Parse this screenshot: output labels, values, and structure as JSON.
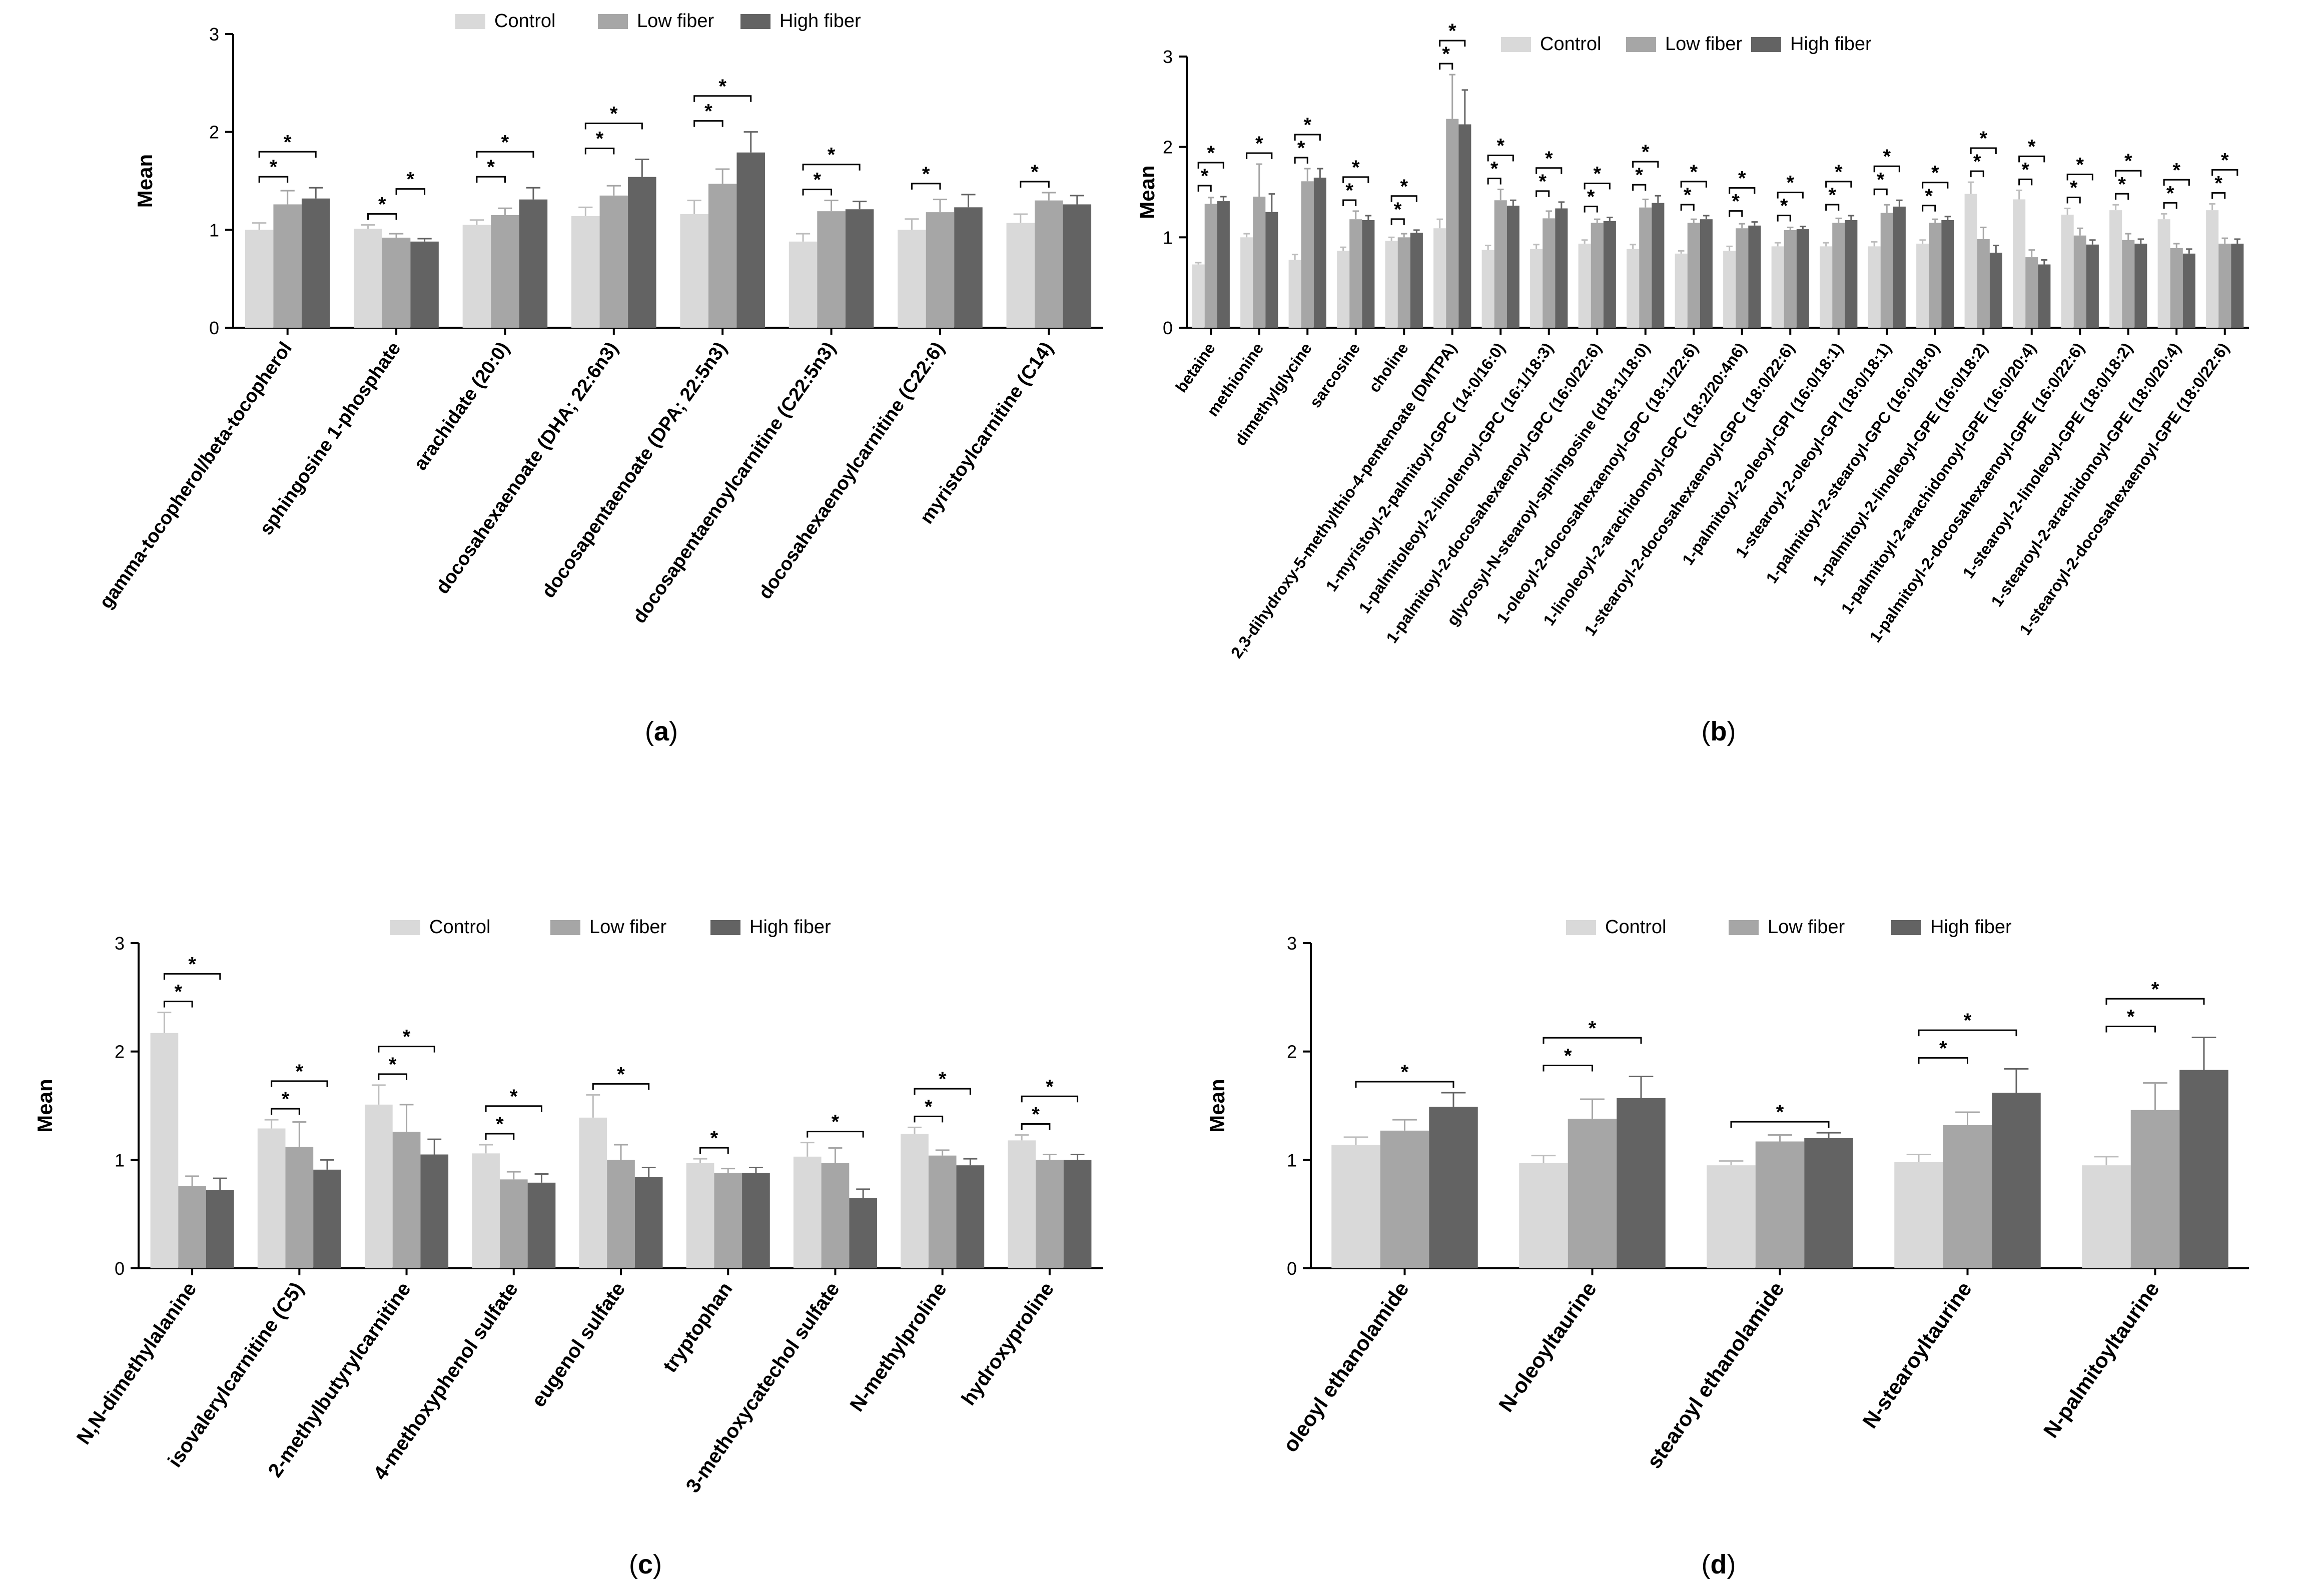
{
  "colors": {
    "control": "#d9d9d9",
    "low_fiber": "#a6a6a6",
    "high_fiber": "#636363",
    "axis": "#000000"
  },
  "legend": [
    "Control",
    "Low fiber",
    "High fiber"
  ],
  "chart_data": [
    {
      "type": "bar",
      "panel_label": "(a)",
      "ylabel": "Mean",
      "ylim": [
        0,
        3
      ],
      "yticks": [
        0,
        1,
        2,
        3
      ],
      "categories": [
        "gamma-tocopherol/beta-tocopherol",
        "sphingosine 1-phosphate",
        "arachidate (20:0)",
        "docosahexaenoate (DHA; 22:6n3)",
        "docosapentaenoate (DPA; 22:5n3)",
        "docosapentaenoylcarnitine (C22:5n3)",
        "docosahexaenoylcarnitine (C22:6)",
        "myristoylcarnitine (C14)"
      ],
      "series": [
        {
          "name": "Control",
          "values": [
            1.0,
            1.01,
            1.05,
            1.14,
            1.16,
            0.88,
            1.0,
            1.07
          ],
          "errors": [
            0.07,
            0.04,
            0.05,
            0.09,
            0.14,
            0.08,
            0.11,
            0.09
          ]
        },
        {
          "name": "Low fiber",
          "values": [
            1.26,
            0.92,
            1.15,
            1.35,
            1.47,
            1.19,
            1.18,
            1.3
          ],
          "errors": [
            0.14,
            0.04,
            0.07,
            0.1,
            0.15,
            0.11,
            0.13,
            0.08
          ]
        },
        {
          "name": "High fiber",
          "values": [
            1.32,
            0.88,
            1.31,
            1.54,
            1.79,
            1.21,
            1.23,
            1.26
          ],
          "errors": [
            0.11,
            0.03,
            0.12,
            0.18,
            0.21,
            0.08,
            0.13,
            0.09
          ]
        }
      ],
      "significance": [
        {
          "category": 0,
          "from": 0,
          "to": 1,
          "label": "*"
        },
        {
          "category": 0,
          "from": 0,
          "to": 2,
          "label": "*"
        },
        {
          "category": 1,
          "from": 0,
          "to": 1,
          "label": "*"
        },
        {
          "category": 1,
          "from": 1,
          "to": 2,
          "label": "*"
        },
        {
          "category": 2,
          "from": 0,
          "to": 1,
          "label": "*"
        },
        {
          "category": 2,
          "from": 0,
          "to": 2,
          "label": "*"
        },
        {
          "category": 3,
          "from": 0,
          "to": 1,
          "label": "*"
        },
        {
          "category": 3,
          "from": 0,
          "to": 2,
          "label": "*"
        },
        {
          "category": 4,
          "from": 0,
          "to": 1,
          "label": "*"
        },
        {
          "category": 4,
          "from": 0,
          "to": 2,
          "label": "*"
        },
        {
          "category": 5,
          "from": 0,
          "to": 1,
          "label": "*"
        },
        {
          "category": 5,
          "from": 0,
          "to": 2,
          "label": "*"
        },
        {
          "category": 6,
          "from": 0,
          "to": 1,
          "label": "*"
        },
        {
          "category": 7,
          "from": 0,
          "to": 1,
          "label": "*"
        }
      ]
    },
    {
      "type": "bar",
      "panel_label": "(b)",
      "ylabel": "Mean",
      "ylim": [
        0,
        3
      ],
      "yticks": [
        0,
        1,
        2,
        3
      ],
      "categories": [
        "betaine",
        "methionine",
        "dimethylglycine",
        "sarcosine",
        "choline",
        "2,3-dihydroxy-5-methylthio-4-pentenoate (DMTPA)",
        "1-myristoyl-2-palmitoyl-GPC (14:0/16:0)",
        "1-palmitoleoyl-2-linolenoyl-GPC (16:1/18:3)",
        "1-palmitoyl-2-docosahexaenoyl-GPC (16:0/22:6)",
        "glycosyl-N-stearoyl-sphingosine (d18:1/18:0)",
        "1-oleoyl-2-docosahexaenoyl-GPC (18:1/22:6)",
        "1-linoleoyl-2-arachidonoyl-GPC (18:2/20:4n6)",
        "1-stearoyl-2-docosahexaenoyl-GPC (18:0/22:6)",
        "1-palmitoyl-2-oleoyl-GPI (16:0/18:1)",
        "1-stearoyl-2-oleoyl-GPI (18:0/18:1)",
        "1-palmitoyl-2-stearoyl-GPC (16:0/18:0)",
        "1-palmitoyl-2-linoleoyl-GPE (16:0/18:2)",
        "1-palmitoyl-2-arachidonoyl-GPE (16:0/20:4)",
        "1-palmitoyl-2-docosahexaenoyl-GPE (16:0/22:6)",
        "1-stearoyl-2-linoleoyl-GPE (18:0/18:2)",
        "1-stearoyl-2-arachidonoyl-GPE (18:0/20:4)",
        "1-stearoyl-2-docosahexaenoyl-GPE (18:0/22:6)"
      ],
      "series": [
        {
          "name": "Control",
          "values": [
            0.7,
            1.0,
            0.75,
            0.85,
            0.96,
            1.1,
            0.86,
            0.87,
            0.93,
            0.87,
            0.82,
            0.85,
            0.9,
            0.9,
            0.9,
            0.93,
            1.48,
            1.42,
            1.25,
            1.3,
            1.2,
            1.3
          ],
          "errors": [
            0.02,
            0.04,
            0.06,
            0.04,
            0.04,
            0.1,
            0.05,
            0.05,
            0.04,
            0.05,
            0.03,
            0.05,
            0.04,
            0.04,
            0.05,
            0.04,
            0.13,
            0.1,
            0.07,
            0.06,
            0.06,
            0.07
          ]
        },
        {
          "name": "Low fiber",
          "values": [
            1.37,
            1.45,
            1.62,
            1.2,
            1.0,
            2.31,
            1.41,
            1.21,
            1.16,
            1.33,
            1.16,
            1.1,
            1.08,
            1.16,
            1.27,
            1.16,
            0.98,
            0.78,
            1.02,
            0.97,
            0.88,
            0.93
          ],
          "errors": [
            0.07,
            0.36,
            0.14,
            0.09,
            0.04,
            0.49,
            0.12,
            0.08,
            0.04,
            0.09,
            0.04,
            0.05,
            0.03,
            0.05,
            0.09,
            0.04,
            0.13,
            0.08,
            0.08,
            0.07,
            0.05,
            0.06
          ]
        },
        {
          "name": "High fiber",
          "values": [
            1.4,
            1.28,
            1.66,
            1.19,
            1.05,
            2.25,
            1.35,
            1.32,
            1.18,
            1.38,
            1.2,
            1.13,
            1.09,
            1.19,
            1.34,
            1.19,
            0.83,
            0.7,
            0.92,
            0.93,
            0.82,
            0.93
          ],
          "errors": [
            0.05,
            0.2,
            0.1,
            0.05,
            0.03,
            0.38,
            0.06,
            0.07,
            0.04,
            0.08,
            0.04,
            0.04,
            0.03,
            0.05,
            0.07,
            0.04,
            0.08,
            0.05,
            0.05,
            0.05,
            0.05,
            0.05
          ]
        }
      ],
      "significance": [
        {
          "category": 0,
          "from": 0,
          "to": 1,
          "label": "*"
        },
        {
          "category": 0,
          "from": 0,
          "to": 2,
          "label": "*"
        },
        {
          "category": 1,
          "from": 0,
          "to": 2,
          "label": "*"
        },
        {
          "category": 2,
          "from": 0,
          "to": 1,
          "label": "*"
        },
        {
          "category": 2,
          "from": 0,
          "to": 2,
          "label": "*"
        },
        {
          "category": 3,
          "from": 0,
          "to": 1,
          "label": "*"
        },
        {
          "category": 3,
          "from": 0,
          "to": 2,
          "label": "*"
        },
        {
          "category": 4,
          "from": 0,
          "to": 1,
          "label": "*"
        },
        {
          "category": 4,
          "from": 0,
          "to": 2,
          "label": "*"
        },
        {
          "category": 5,
          "from": 0,
          "to": 1,
          "label": "*"
        },
        {
          "category": 5,
          "from": 0,
          "to": 2,
          "label": "*"
        },
        {
          "category": 6,
          "from": 0,
          "to": 1,
          "label": "*"
        },
        {
          "category": 6,
          "from": 0,
          "to": 2,
          "label": "*"
        },
        {
          "category": 7,
          "from": 0,
          "to": 1,
          "label": "*"
        },
        {
          "category": 7,
          "from": 0,
          "to": 2,
          "label": "*"
        },
        {
          "category": 8,
          "from": 0,
          "to": 1,
          "label": "*"
        },
        {
          "category": 8,
          "from": 0,
          "to": 2,
          "label": "*"
        },
        {
          "category": 9,
          "from": 0,
          "to": 1,
          "label": "*"
        },
        {
          "category": 9,
          "from": 0,
          "to": 2,
          "label": "*"
        },
        {
          "category": 10,
          "from": 0,
          "to": 1,
          "label": "*"
        },
        {
          "category": 10,
          "from": 0,
          "to": 2,
          "label": "*"
        },
        {
          "category": 11,
          "from": 0,
          "to": 1,
          "label": "*"
        },
        {
          "category": 11,
          "from": 0,
          "to": 2,
          "label": "*"
        },
        {
          "category": 12,
          "from": 0,
          "to": 1,
          "label": "*"
        },
        {
          "category": 12,
          "from": 0,
          "to": 2,
          "label": "*"
        },
        {
          "category": 13,
          "from": 0,
          "to": 1,
          "label": "*"
        },
        {
          "category": 13,
          "from": 0,
          "to": 2,
          "label": "*"
        },
        {
          "category": 14,
          "from": 0,
          "to": 1,
          "label": "*"
        },
        {
          "category": 14,
          "from": 0,
          "to": 2,
          "label": "*"
        },
        {
          "category": 15,
          "from": 0,
          "to": 1,
          "label": "*"
        },
        {
          "category": 15,
          "from": 0,
          "to": 2,
          "label": "*"
        },
        {
          "category": 16,
          "from": 0,
          "to": 1,
          "label": "*"
        },
        {
          "category": 16,
          "from": 0,
          "to": 2,
          "label": "*"
        },
        {
          "category": 17,
          "from": 0,
          "to": 1,
          "label": "*"
        },
        {
          "category": 17,
          "from": 0,
          "to": 2,
          "label": "*"
        },
        {
          "category": 18,
          "from": 0,
          "to": 1,
          "label": "*"
        },
        {
          "category": 18,
          "from": 0,
          "to": 2,
          "label": "*"
        },
        {
          "category": 19,
          "from": 0,
          "to": 1,
          "label": "*"
        },
        {
          "category": 19,
          "from": 0,
          "to": 2,
          "label": "*"
        },
        {
          "category": 20,
          "from": 0,
          "to": 1,
          "label": "*"
        },
        {
          "category": 20,
          "from": 0,
          "to": 2,
          "label": "*"
        },
        {
          "category": 21,
          "from": 0,
          "to": 1,
          "label": "*"
        },
        {
          "category": 21,
          "from": 0,
          "to": 2,
          "label": "*"
        }
      ]
    },
    {
      "type": "bar",
      "panel_label": "(c)",
      "ylabel": "Mean",
      "ylim": [
        0,
        3
      ],
      "yticks": [
        0,
        1,
        2,
        3
      ],
      "categories": [
        "N,N-dimethylalanine",
        "isovalerylcarnitine (C5)",
        "2-methylbutyrylcarnitine",
        "4-methoxyphenol sulfate",
        "eugenol sulfate",
        "tryptophan",
        "3-methoxycatechol sulfate",
        "N-methylproline",
        "hydroxyproline"
      ],
      "series": [
        {
          "name": "Control",
          "values": [
            2.17,
            1.29,
            1.51,
            1.06,
            1.39,
            0.97,
            1.03,
            1.24,
            1.18
          ],
          "errors": [
            0.19,
            0.08,
            0.18,
            0.08,
            0.21,
            0.04,
            0.13,
            0.06,
            0.05
          ]
        },
        {
          "name": "Low fiber",
          "values": [
            0.76,
            1.12,
            1.26,
            0.82,
            1.0,
            0.88,
            0.97,
            1.04,
            1.0
          ],
          "errors": [
            0.09,
            0.23,
            0.25,
            0.07,
            0.14,
            0.04,
            0.14,
            0.05,
            0.05
          ]
        },
        {
          "name": "High fiber",
          "values": [
            0.72,
            0.91,
            1.05,
            0.79,
            0.84,
            0.88,
            0.65,
            0.95,
            1.0
          ],
          "errors": [
            0.11,
            0.09,
            0.14,
            0.08,
            0.09,
            0.05,
            0.08,
            0.06,
            0.05
          ]
        }
      ],
      "significance": [
        {
          "category": 0,
          "from": 0,
          "to": 1,
          "label": "*"
        },
        {
          "category": 0,
          "from": 0,
          "to": 2,
          "label": "*"
        },
        {
          "category": 1,
          "from": 0,
          "to": 1,
          "label": "*"
        },
        {
          "category": 1,
          "from": 0,
          "to": 2,
          "label": "*"
        },
        {
          "category": 2,
          "from": 0,
          "to": 1,
          "label": "*"
        },
        {
          "category": 2,
          "from": 0,
          "to": 2,
          "label": "*"
        },
        {
          "category": 3,
          "from": 0,
          "to": 1,
          "label": "*"
        },
        {
          "category": 3,
          "from": 0,
          "to": 2,
          "label": "*"
        },
        {
          "category": 4,
          "from": 0,
          "to": 2,
          "label": "*"
        },
        {
          "category": 5,
          "from": 0,
          "to": 1,
          "label": "*"
        },
        {
          "category": 6,
          "from": 0,
          "to": 2,
          "label": "*"
        },
        {
          "category": 7,
          "from": 0,
          "to": 1,
          "label": "*"
        },
        {
          "category": 7,
          "from": 0,
          "to": 2,
          "label": "*"
        },
        {
          "category": 8,
          "from": 0,
          "to": 1,
          "label": "*"
        },
        {
          "category": 8,
          "from": 0,
          "to": 2,
          "label": "*"
        }
      ]
    },
    {
      "type": "bar",
      "panel_label": "(d)",
      "ylabel": "Mean",
      "ylim": [
        0,
        3
      ],
      "yticks": [
        0,
        1,
        2,
        3
      ],
      "categories": [
        "oleoyl ethanolamide",
        "N-oleoyltaurine",
        "stearoyl ethanolamide",
        "N-stearoyltaurine",
        "N-palmitoyltaurine"
      ],
      "series": [
        {
          "name": "Control",
          "values": [
            1.14,
            0.97,
            0.95,
            0.98,
            0.95
          ],
          "errors": [
            0.07,
            0.07,
            0.04,
            0.07,
            0.08
          ]
        },
        {
          "name": "Low fiber",
          "values": [
            1.27,
            1.38,
            1.17,
            1.32,
            1.46
          ],
          "errors": [
            0.1,
            0.18,
            0.06,
            0.12,
            0.25
          ]
        },
        {
          "name": "High fiber",
          "values": [
            1.49,
            1.57,
            1.2,
            1.62,
            1.83
          ],
          "errors": [
            0.13,
            0.2,
            0.05,
            0.22,
            0.3
          ]
        }
      ],
      "significance": [
        {
          "category": 0,
          "from": 0,
          "to": 2,
          "label": "*"
        },
        {
          "category": 1,
          "from": 0,
          "to": 1,
          "label": "*"
        },
        {
          "category": 1,
          "from": 0,
          "to": 2,
          "label": "*"
        },
        {
          "category": 2,
          "from": 0,
          "to": 2,
          "label": "*"
        },
        {
          "category": 3,
          "from": 0,
          "to": 1,
          "label": "*"
        },
        {
          "category": 3,
          "from": 0,
          "to": 2,
          "label": "*"
        },
        {
          "category": 4,
          "from": 0,
          "to": 1,
          "label": "*"
        },
        {
          "category": 4,
          "from": 0,
          "to": 2,
          "label": "*"
        }
      ]
    }
  ]
}
